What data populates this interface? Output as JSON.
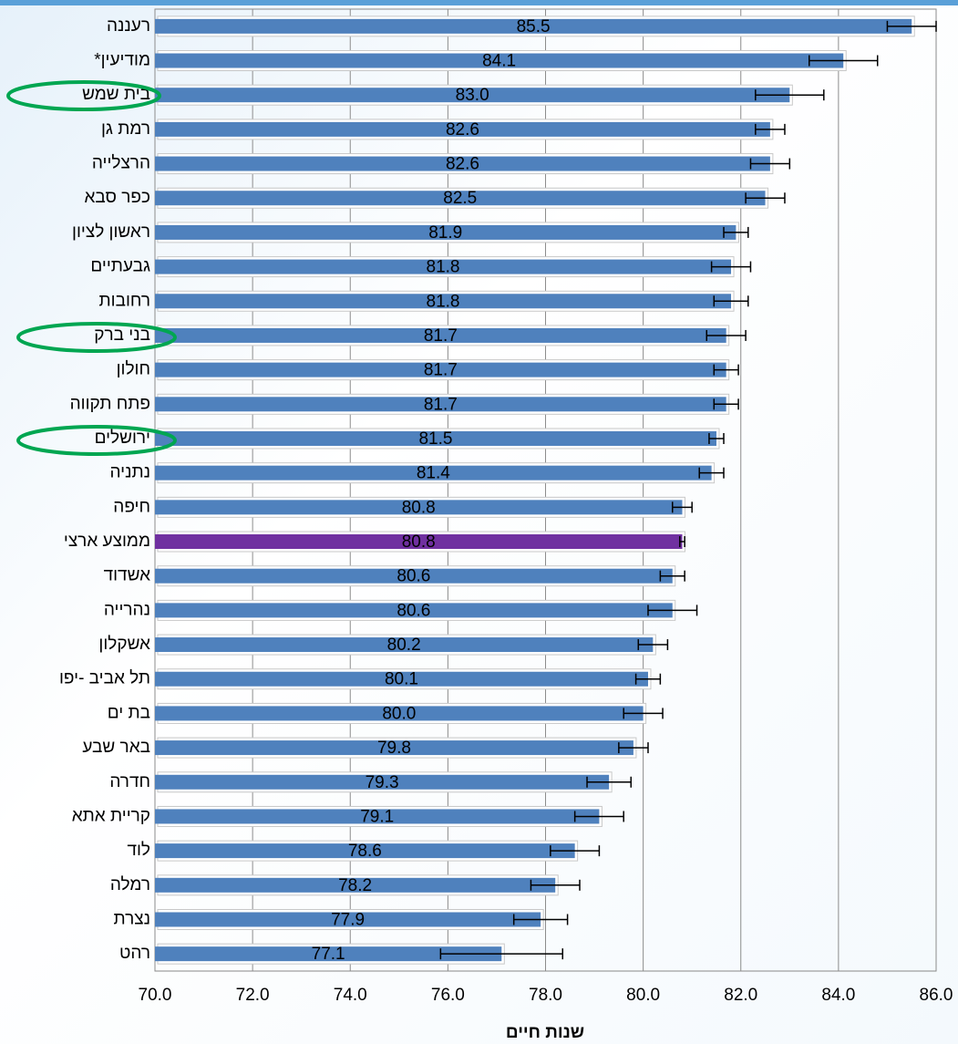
{
  "chart_data": {
    "type": "bar",
    "orientation": "horizontal",
    "x_label": "שנות חיים",
    "categories": [
      "רעננה",
      "מודיעין*",
      "בית שמש",
      "רמת גן",
      "הרצלייה",
      "כפר סבא",
      "ראשון לציון",
      "גבעתיים",
      "רחובות",
      "בני ברק",
      "חולון",
      "פתח תקווה",
      "ירושלים",
      "נתניה",
      "חיפה",
      "ממוצע ארצי",
      "אשדוד",
      "נהרייה",
      "אשקלון",
      "תל אביב -יפו",
      "בת ים",
      "באר שבע",
      "חדרה",
      "קריית אתא",
      "לוד",
      "רמלה",
      "נצרת",
      "רהט"
    ],
    "values": [
      85.5,
      84.1,
      83.0,
      82.6,
      82.6,
      82.5,
      81.9,
      81.8,
      81.8,
      81.7,
      81.7,
      81.7,
      81.5,
      81.4,
      80.8,
      80.8,
      80.6,
      80.6,
      80.2,
      80.1,
      80.0,
      79.8,
      79.3,
      79.1,
      78.6,
      78.2,
      77.9,
      77.1
    ],
    "value_labels": [
      "85.5",
      "84.1",
      "83.0",
      "82.6",
      "82.6",
      "82.5",
      "81.9",
      "81.8",
      "81.8",
      "81.7",
      "81.7",
      "81.7",
      "81.5",
      "81.4",
      "80.8",
      "80.8",
      "80.6",
      "80.6",
      "80.2",
      "80.1",
      "80.0",
      "79.8",
      "79.3",
      "79.1",
      "78.6",
      "78.2",
      "77.9",
      "77.1"
    ],
    "errors": [
      0.5,
      0.7,
      0.7,
      0.3,
      0.4,
      0.4,
      0.25,
      0.4,
      0.35,
      0.4,
      0.25,
      0.25,
      0.15,
      0.25,
      0.2,
      0.05,
      0.25,
      0.5,
      0.3,
      0.25,
      0.4,
      0.3,
      0.45,
      0.5,
      0.5,
      0.5,
      0.55,
      1.25
    ],
    "colors": [
      "#4f81bd",
      "#4f81bd",
      "#4f81bd",
      "#4f81bd",
      "#4f81bd",
      "#4f81bd",
      "#4f81bd",
      "#4f81bd",
      "#4f81bd",
      "#4f81bd",
      "#4f81bd",
      "#4f81bd",
      "#4f81bd",
      "#4f81bd",
      "#4f81bd",
      "#7030a0",
      "#4f81bd",
      "#4f81bd",
      "#4f81bd",
      "#4f81bd",
      "#4f81bd",
      "#4f81bd",
      "#4f81bd",
      "#4f81bd",
      "#4f81bd",
      "#4f81bd",
      "#4f81bd",
      "#4f81bd"
    ],
    "xlim": [
      70,
      86
    ],
    "xticks": [
      {
        "value": 70,
        "label": "70.0"
      },
      {
        "value": 72,
        "label": "72.0"
      },
      {
        "value": 74,
        "label": "74.0"
      },
      {
        "value": 76,
        "label": "76.0"
      },
      {
        "value": 78,
        "label": "78.0"
      },
      {
        "value": 80,
        "label": "80.0"
      },
      {
        "value": 82,
        "label": "82.0"
      },
      {
        "value": 84,
        "label": "84.0"
      },
      {
        "value": 86,
        "label": "86.0"
      }
    ],
    "grid": true
  }
}
